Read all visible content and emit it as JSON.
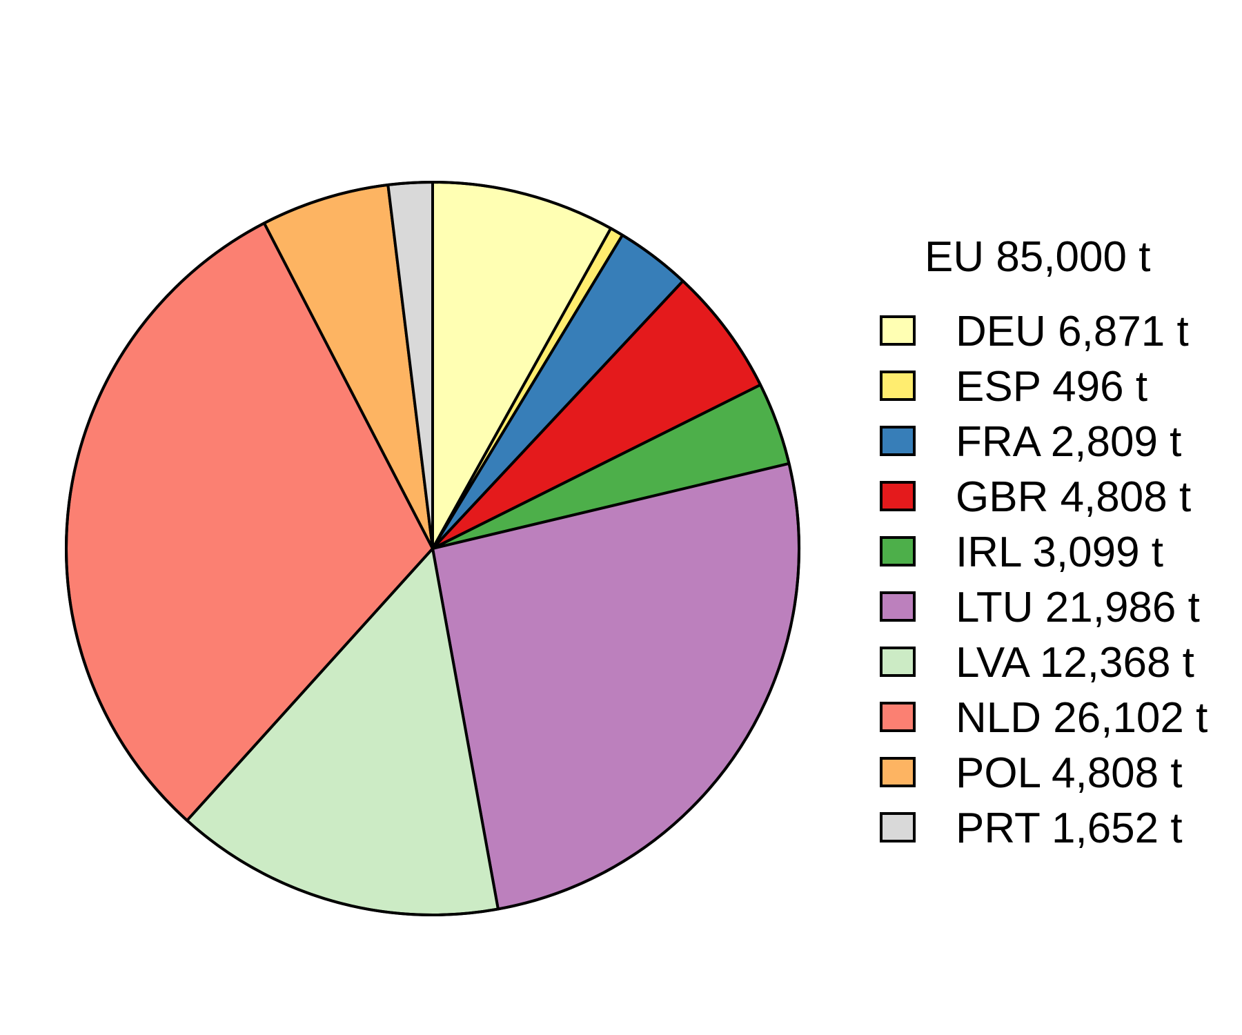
{
  "chart_data": {
    "type": "pie",
    "title": "",
    "legend_title": "EU 85,000 t",
    "legend_placement": "right",
    "start": "top",
    "direction": "clockwise",
    "slices": [
      {
        "code": "DEU",
        "value": 6871,
        "label": "DEU 6,871 t",
        "color": "#FFFFB3"
      },
      {
        "code": "ESP",
        "value": 496,
        "label": "ESP 496 t",
        "color": "#FFED6F"
      },
      {
        "code": "FRA",
        "value": 2809,
        "label": "FRA 2,809 t",
        "color": "#377EB8"
      },
      {
        "code": "GBR",
        "value": 4808,
        "label": "GBR 4,808 t",
        "color": "#E41A1C"
      },
      {
        "code": "IRL",
        "value": 3099,
        "label": "IRL 3,099 t",
        "color": "#4DAF4A"
      },
      {
        "code": "LTU",
        "value": 21986,
        "label": "LTU 21,986 t",
        "color": "#BC80BD"
      },
      {
        "code": "LVA",
        "value": 12368,
        "label": "LVA 12,368 t",
        "color": "#CCEBC5"
      },
      {
        "code": "NLD",
        "value": 26102,
        "label": "NLD 26,102 t",
        "color": "#FB8072"
      },
      {
        "code": "POL",
        "value": 4808,
        "label": "POL 4,808 t",
        "color": "#FDB462"
      },
      {
        "code": "PRT",
        "value": 1652,
        "label": "PRT 1,652 t",
        "color": "#D9D9D9"
      }
    ]
  }
}
